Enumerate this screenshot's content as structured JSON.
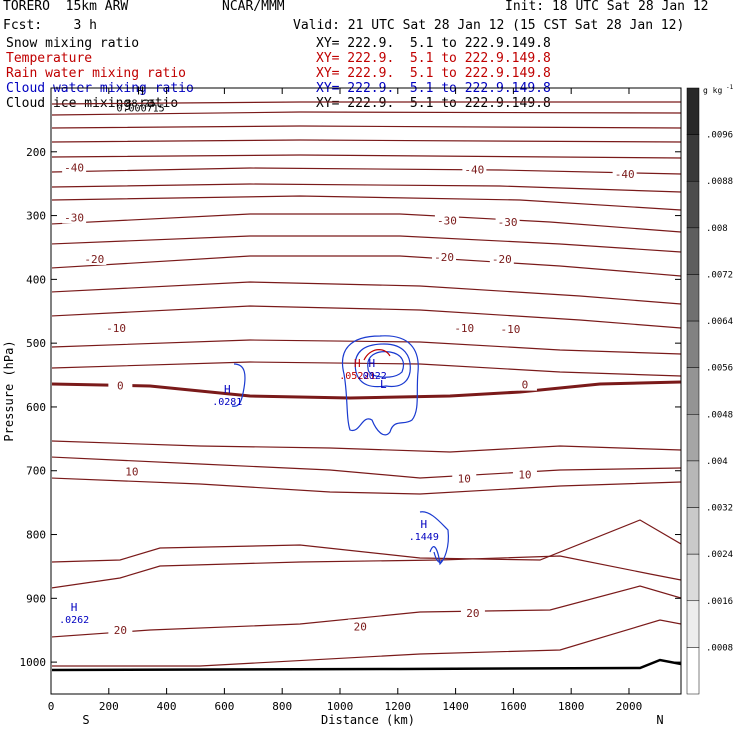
{
  "header": {
    "model": "TORERO  15km ARW",
    "center": "NCAR/MMM",
    "init": "Init: 18 UTC Sat 28 Jan 12",
    "fcst": "Fcst:    3 h",
    "valid": "Valid: 21 UTC Sat 28 Jan 12 (15 CST Sat 28 Jan 12)"
  },
  "fields": [
    {
      "name": "Snow mixing ratio",
      "xy": "XY= 222.9.  5.1 to 222.9.149.8",
      "color": "#000000"
    },
    {
      "name": "Temperature",
      "xy": "XY= 222.9.  5.1 to 222.9.149.8",
      "color": "#c00000"
    },
    {
      "name": "Rain water mixing ratio",
      "xy": "XY= 222.9.  5.1 to 222.9.149.8",
      "color": "#c00000"
    },
    {
      "name": "Cloud water mixing ratio",
      "xy": "XY= 222.9.  5.1 to 222.9.149.8",
      "color": "#0000c0"
    },
    {
      "name": "Cloud ice mixing ratio",
      "xy": "XY= 222.9.  5.1 to 222.9.149.8",
      "color": "#000000"
    }
  ],
  "chart_data": {
    "type": "contour",
    "xlabel": "Distance (km)",
    "ylabel": "Pressure (hPa)",
    "xlim": [
      0,
      2180
    ],
    "ylim": [
      1050,
      100
    ],
    "xticks": [
      0,
      200,
      400,
      600,
      800,
      1000,
      1200,
      1400,
      1600,
      1800,
      2000
    ],
    "yticks": [
      200,
      300,
      400,
      500,
      600,
      700,
      800,
      900,
      1000
    ],
    "x_end_labels": {
      "left": "S",
      "right": "N"
    },
    "colorbar": {
      "unit": "g kg",
      "unit_exp": "-1",
      "ticks": [
        ".0096",
        ".0088",
        ".008",
        ".0072",
        ".0064",
        ".0056",
        ".0048",
        ".004",
        ".0032",
        ".0024",
        ".0016",
        ".0008"
      ]
    },
    "temperature_labels": [
      {
        "text": "-40",
        "x": 80,
        "p": 225
      },
      {
        "text": "-40",
        "x": 1465,
        "p": 228
      },
      {
        "text": "-40",
        "x": 1985,
        "p": 235
      },
      {
        "text": "-30",
        "x": 80,
        "p": 303
      },
      {
        "text": "-30",
        "x": 1370,
        "p": 308
      },
      {
        "text": "-30",
        "x": 1580,
        "p": 310
      },
      {
        "text": "-20",
        "x": 150,
        "p": 368
      },
      {
        "text": "-20",
        "x": 1360,
        "p": 365
      },
      {
        "text": "-20",
        "x": 1560,
        "p": 368
      },
      {
        "text": "-10",
        "x": 225,
        "p": 476
      },
      {
        "text": "-10",
        "x": 1430,
        "p": 476
      },
      {
        "text": "-10",
        "x": 1590,
        "p": 478
      },
      {
        "text": "0",
        "x": 240,
        "p": 566
      },
      {
        "text": "0",
        "x": 1640,
        "p": 565
      },
      {
        "text": "10",
        "x": 280,
        "p": 701
      },
      {
        "text": "10",
        "x": 1430,
        "p": 712
      },
      {
        "text": "10",
        "x": 1640,
        "p": 706
      },
      {
        "text": "20",
        "x": 240,
        "p": 950
      },
      {
        "text": "20",
        "x": 1070,
        "p": 944
      },
      {
        "text": "20",
        "x": 1460,
        "p": 923
      }
    ],
    "maxima": [
      {
        "label": "H",
        "value": ".0281",
        "x": 610,
        "p": 578,
        "color": "#0000c0"
      },
      {
        "label": "H",
        "value": ".1449",
        "x": 1290,
        "p": 790,
        "color": "#0000c0"
      },
      {
        "label": "H",
        "value": ".0262",
        "x": 80,
        "p": 920,
        "color": "#0000c0"
      },
      {
        "label": "H",
        "value": ".05221",
        "x": 1060,
        "p": 537,
        "color": "#c00000"
      },
      {
        "label": "H",
        "value": ".0022",
        "x": 1110,
        "p": 537,
        "color": "#0000c0"
      },
      {
        "label": "H",
        "value": "88.25",
        "x": 310,
        "p": 110,
        "color": "#000000"
      },
      {
        "label": "",
        "value": "0.000715",
        "x": 310,
        "p": 118,
        "color": "#000000"
      },
      {
        "label": "L",
        "value": "",
        "x": 1150,
        "p": 570,
        "color": "#0000c0"
      }
    ]
  }
}
